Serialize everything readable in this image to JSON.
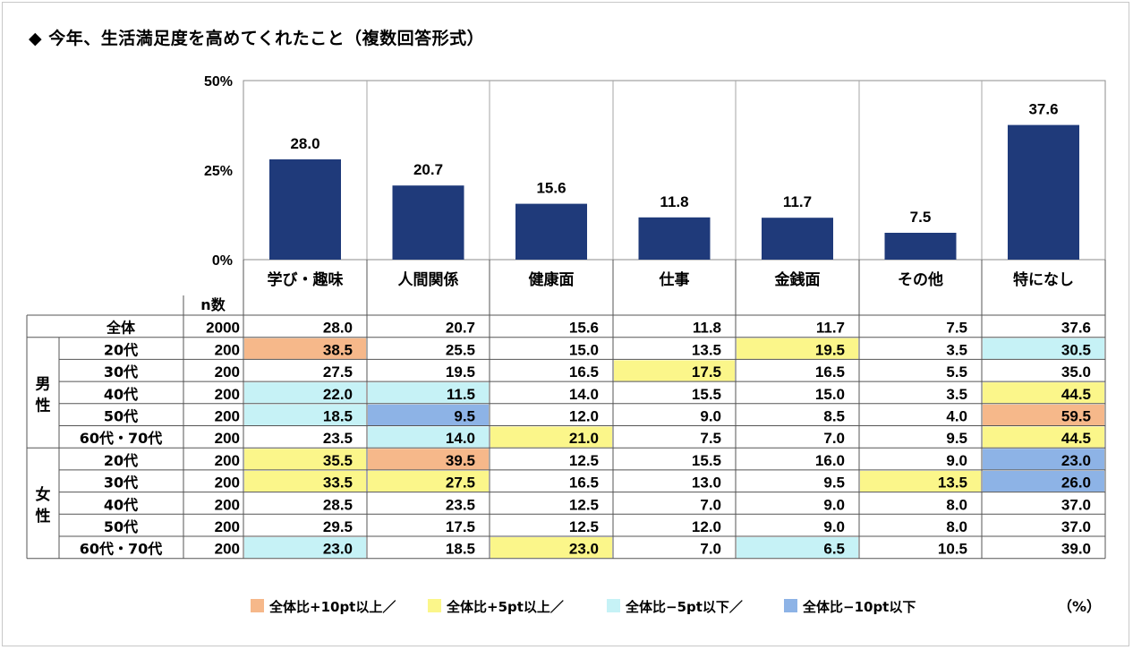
{
  "title": "◆ 今年、生活満足度を高めてくれたこと（複数回答形式）",
  "unit": "（%）",
  "chart_data": {
    "type": "bar",
    "categories": [
      "学び・趣味",
      "人間関係",
      "健康面",
      "仕事",
      "金銭面",
      "その他",
      "特になし"
    ],
    "values": [
      28.0,
      20.7,
      15.6,
      11.8,
      11.7,
      7.5,
      37.6
    ],
    "value_labels": [
      "28.0",
      "20.7",
      "15.6",
      "11.8",
      "11.7",
      "7.5",
      "37.6"
    ],
    "ylim": [
      0,
      50
    ],
    "yticks": [
      "50%",
      "25%",
      "0%"
    ],
    "bar_color": "#1f3a7a"
  },
  "table": {
    "n_header": "n数",
    "total_label": "全体",
    "groups": [
      {
        "label": "男\n性",
        "label_chars": [
          "男",
          "性"
        ]
      },
      {
        "label": "女\n性",
        "label_chars": [
          "女",
          "性"
        ]
      }
    ],
    "rows": [
      {
        "group": -1,
        "label": "全体",
        "n": "2000",
        "cells": [
          "28.0",
          "20.7",
          "15.6",
          "11.8",
          "11.7",
          "7.5",
          "37.6"
        ],
        "marks": [
          "",
          "",
          "",
          "",
          "",
          "",
          ""
        ]
      },
      {
        "group": 0,
        "label": "20代",
        "n": "200",
        "cells": [
          "38.5",
          "25.5",
          "15.0",
          "13.5",
          "19.5",
          "3.5",
          "30.5"
        ],
        "marks": [
          "p10",
          "",
          "",
          "",
          "p5",
          "",
          "m5"
        ]
      },
      {
        "group": 0,
        "label": "30代",
        "n": "200",
        "cells": [
          "27.5",
          "19.5",
          "16.5",
          "17.5",
          "16.5",
          "5.5",
          "35.0"
        ],
        "marks": [
          "",
          "",
          "",
          "p5",
          "",
          "",
          ""
        ]
      },
      {
        "group": 0,
        "label": "40代",
        "n": "200",
        "cells": [
          "22.0",
          "11.5",
          "14.0",
          "15.5",
          "15.0",
          "3.5",
          "44.5"
        ],
        "marks": [
          "m5",
          "m5",
          "",
          "",
          "",
          "",
          "p5"
        ]
      },
      {
        "group": 0,
        "label": "50代",
        "n": "200",
        "cells": [
          "18.5",
          "9.5",
          "12.0",
          "9.0",
          "8.5",
          "4.0",
          "59.5"
        ],
        "marks": [
          "m5",
          "m10",
          "",
          "",
          "",
          "",
          "p10"
        ]
      },
      {
        "group": 0,
        "label": "60代・70代",
        "n": "200",
        "cells": [
          "23.5",
          "14.0",
          "21.0",
          "7.5",
          "7.0",
          "9.5",
          "44.5"
        ],
        "marks": [
          "",
          "m5",
          "p5",
          "",
          "",
          "",
          "p5"
        ]
      },
      {
        "group": 1,
        "label": "20代",
        "n": "200",
        "cells": [
          "35.5",
          "39.5",
          "12.5",
          "15.5",
          "16.0",
          "9.0",
          "23.0"
        ],
        "marks": [
          "p5",
          "p10",
          "",
          "",
          "",
          "",
          "m10"
        ]
      },
      {
        "group": 1,
        "label": "30代",
        "n": "200",
        "cells": [
          "33.5",
          "27.5",
          "16.5",
          "13.0",
          "9.5",
          "13.5",
          "26.0"
        ],
        "marks": [
          "p5",
          "p5",
          "",
          "",
          "",
          "p5",
          "m10"
        ]
      },
      {
        "group": 1,
        "label": "40代",
        "n": "200",
        "cells": [
          "28.5",
          "23.5",
          "12.5",
          "7.0",
          "9.0",
          "8.0",
          "37.0"
        ],
        "marks": [
          "",
          "",
          "",
          "",
          "",
          "",
          ""
        ]
      },
      {
        "group": 1,
        "label": "50代",
        "n": "200",
        "cells": [
          "29.5",
          "17.5",
          "12.5",
          "12.0",
          "9.0",
          "8.0",
          "37.0"
        ],
        "marks": [
          "",
          "",
          "",
          "",
          "",
          "",
          ""
        ]
      },
      {
        "group": 1,
        "label": "60代・70代",
        "n": "200",
        "cells": [
          "23.0",
          "18.5",
          "23.0",
          "7.0",
          "6.5",
          "10.5",
          "39.0"
        ],
        "marks": [
          "m5",
          "",
          "p5",
          "",
          "m5",
          "",
          ""
        ]
      }
    ]
  },
  "legend": [
    {
      "key": "p10",
      "label": "全体比+10pt以上／",
      "color": "#f6b88a"
    },
    {
      "key": "p5",
      "label": "全体比+5pt以上／",
      "color": "#fbf68a"
    },
    {
      "key": "m5",
      "label": "全体比−5pt以下／",
      "color": "#c6f2f6"
    },
    {
      "key": "m10",
      "label": "全体比−10pt以下",
      "color": "#8db3e6"
    }
  ]
}
